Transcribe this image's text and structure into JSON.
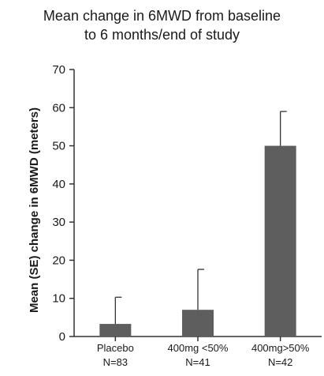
{
  "chart_data": {
    "type": "bar",
    "title_lines": [
      "Mean change in 6MWD from baseline",
      "to 6 months/end of study"
    ],
    "ylabel": "Mean (SE) change in 6MWD (meters)",
    "xlabel": "",
    "categories": [
      {
        "name": "Placebo",
        "n": "N=83"
      },
      {
        "name": "400mg <50%",
        "n": "N=41"
      },
      {
        "name": "400mg>50%",
        "n": "N=42"
      }
    ],
    "values": [
      3.3,
      7.0,
      50.0
    ],
    "errors": [
      7.0,
      10.6,
      9.0
    ],
    "ylim": [
      0,
      70
    ],
    "yticks": [
      0,
      10,
      20,
      30,
      40,
      50,
      60,
      70
    ],
    "grid": false,
    "legend": "none",
    "colors": {
      "bar": "#5e5e5e",
      "axis": "#333333",
      "error": "#333333",
      "text": "#1a1a1a"
    }
  }
}
